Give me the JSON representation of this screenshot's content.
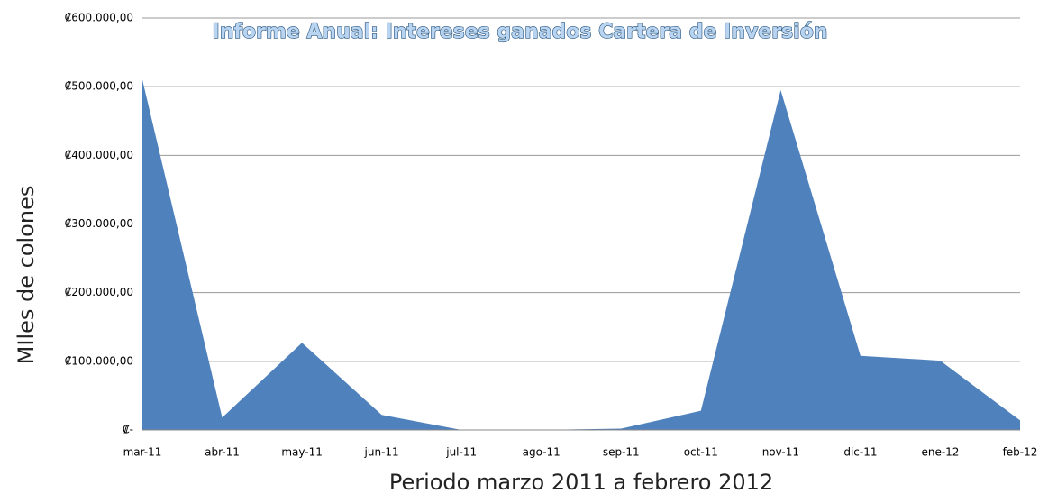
{
  "chart_data": {
    "type": "area",
    "title": "Informe Anual: Intereses ganados Cartera de Inversión",
    "y_label": "MIles de colones",
    "x_label": "Periodo  marzo 2011 a febrero 2012",
    "categories": [
      "mar-11",
      "abr-11",
      "may-11",
      "jun-11",
      "jul-11",
      "ago-11",
      "sep-11",
      "oct-11",
      "nov-11",
      "dic-11",
      "ene-12",
      "feb-12"
    ],
    "values": [
      510000,
      18000,
      127000,
      22000,
      0,
      0,
      2000,
      28000,
      495000,
      108000,
      101000,
      14000
    ],
    "color": "#4f81bd",
    "ylim": [
      0,
      600000
    ],
    "yticks": [
      {
        "value": 0,
        "label": "₡-"
      },
      {
        "value": 100000,
        "label": "₡100.000,00"
      },
      {
        "value": 200000,
        "label": "₡200.000,00"
      },
      {
        "value": 300000,
        "label": "₡300.000,00"
      },
      {
        "value": 400000,
        "label": "₡400.000,00"
      },
      {
        "value": 500000,
        "label": "₡500.000,00"
      },
      {
        "value": 600000,
        "label": "₡600.000,00"
      }
    ],
    "grid": true
  }
}
